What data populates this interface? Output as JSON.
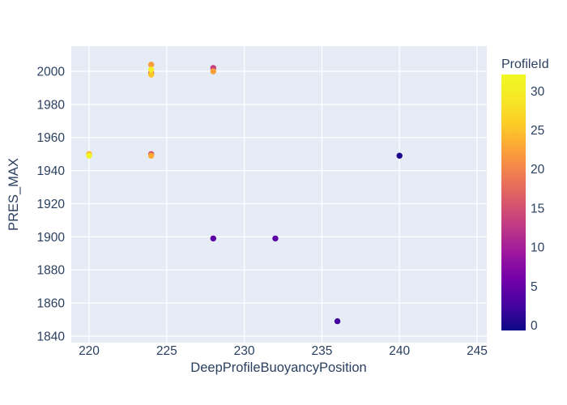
{
  "colors": {
    "paper_bg": "#ffffff",
    "plot_bg": "#e5ecf6",
    "grid": "#ffffff",
    "text": "#2a3f5f"
  },
  "chart_data": {
    "type": "scatter",
    "title": "",
    "xlabel": "DeepProfileBuoyancyPosition",
    "ylabel": "PRES_MAX",
    "xlim": [
      218.9,
      245.6
    ],
    "ylim": [
      1836,
      2015
    ],
    "x_ticks": [
      220,
      225,
      230,
      235,
      240,
      245
    ],
    "y_ticks": [
      1840,
      1860,
      1880,
      1900,
      1920,
      1940,
      1960,
      1980,
      2000
    ],
    "grid": true,
    "legend_position": "none",
    "colorbar": {
      "title": "ProfileId",
      "ticks": [
        0,
        5,
        10,
        15,
        20,
        25,
        30
      ],
      "range": [
        0,
        31
      ],
      "colormap": "plasma",
      "colormap_stops": [
        "#0d0887",
        "#46039f",
        "#7201a8",
        "#9c179e",
        "#bd3786",
        "#d8576b",
        "#ed7953",
        "#fb9f3a",
        "#fdca26",
        "#f6e726",
        "#f0f921"
      ]
    },
    "points": [
      {
        "x": 220,
        "y": 1950,
        "profile_id": 25,
        "color": "#fdb52e"
      },
      {
        "x": 220,
        "y": 1949,
        "profile_id": 31,
        "color": "#f1f525"
      },
      {
        "x": 224,
        "y": 1950,
        "profile_id": 15,
        "color": "#d0506e"
      },
      {
        "x": 224,
        "y": 1949,
        "profile_id": 23,
        "color": "#fcaa33"
      },
      {
        "x": 224,
        "y": 1999,
        "profile_id": 16,
        "color": "#d5536a"
      },
      {
        "x": 224,
        "y": 2004,
        "profile_id": 22,
        "color": "#fa9e3b"
      },
      {
        "x": 224,
        "y": 1998,
        "profile_id": 27,
        "color": "#fdc627"
      },
      {
        "x": 224,
        "y": 2001,
        "profile_id": 30,
        "color": "#f4ee27"
      },
      {
        "x": 228,
        "y": 2002,
        "profile_id": 14,
        "color": "#c5407e"
      },
      {
        "x": 228,
        "y": 2000,
        "profile_id": 22,
        "color": "#fa9e3b"
      },
      {
        "x": 228,
        "y": 1899,
        "profile_id": 5,
        "color": "#5c01a6"
      },
      {
        "x": 232,
        "y": 1899,
        "profile_id": 5,
        "color": "#5c01a6"
      },
      {
        "x": 236,
        "y": 1849,
        "profile_id": 3,
        "color": "#43039e"
      },
      {
        "x": 240,
        "y": 1949,
        "profile_id": 1,
        "color": "#1b068d"
      }
    ]
  }
}
